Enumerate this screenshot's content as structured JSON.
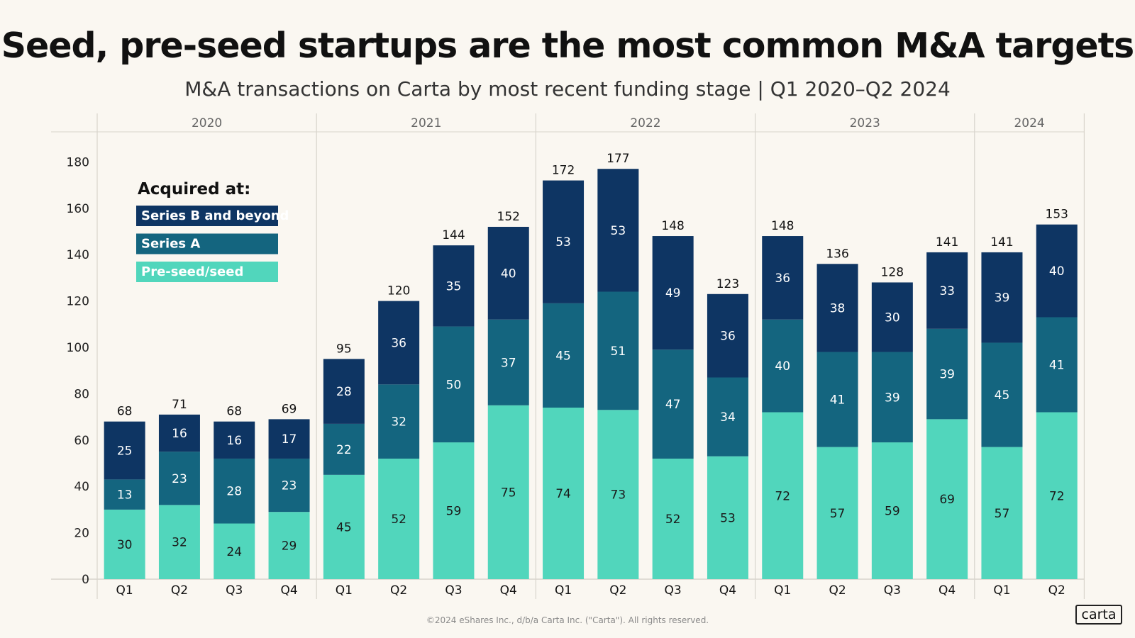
{
  "title": "Seed, pre-seed startups are the most common M&A targets",
  "subtitle": "M&A transactions on Carta by most recent funding stage  | Q1 2020–Q2 2024",
  "footer": "©2024 eShares Inc., d/b/a Carta Inc. (\"Carta\"). All rights reserved.",
  "logo": "carta",
  "legend_title": "Acquired at:",
  "colors": {
    "series_b": "#0E3563",
    "series_a": "#14657F",
    "seed": "#51D6BC",
    "grid": "#D8D4CC"
  },
  "chart_data": {
    "type": "bar",
    "stacked": true,
    "years": [
      "2020",
      "2021",
      "2022",
      "2023",
      "2024"
    ],
    "year_quarters": [
      4,
      4,
      4,
      4,
      2
    ],
    "categories": [
      "Q1",
      "Q2",
      "Q3",
      "Q4",
      "Q1",
      "Q2",
      "Q3",
      "Q4",
      "Q1",
      "Q2",
      "Q3",
      "Q4",
      "Q1",
      "Q2",
      "Q3",
      "Q4",
      "Q1",
      "Q2"
    ],
    "series": [
      {
        "name": "Pre-seed/seed",
        "values": [
          30,
          32,
          24,
          29,
          45,
          52,
          59,
          75,
          74,
          73,
          52,
          53,
          72,
          57,
          59,
          69,
          57,
          72
        ]
      },
      {
        "name": "Series A",
        "values": [
          13,
          23,
          28,
          23,
          22,
          32,
          50,
          37,
          45,
          51,
          47,
          34,
          40,
          41,
          39,
          39,
          45,
          41
        ]
      },
      {
        "name": "Series B and beyond",
        "values": [
          25,
          16,
          16,
          17,
          28,
          36,
          35,
          40,
          53,
          53,
          49,
          36,
          36,
          38,
          30,
          33,
          39,
          40
        ]
      }
    ],
    "totals": [
      68,
      71,
      68,
      69,
      95,
      120,
      144,
      152,
      172,
      177,
      148,
      123,
      148,
      136,
      128,
      141,
      141,
      153
    ],
    "legend_order": [
      "Series B and beyond",
      "Series A",
      "Pre-seed/seed"
    ],
    "ylim": [
      0,
      180
    ],
    "yticks": [
      0,
      20,
      40,
      60,
      80,
      100,
      120,
      140,
      160,
      180
    ],
    "grid": false,
    "legend_position": "top-left"
  }
}
